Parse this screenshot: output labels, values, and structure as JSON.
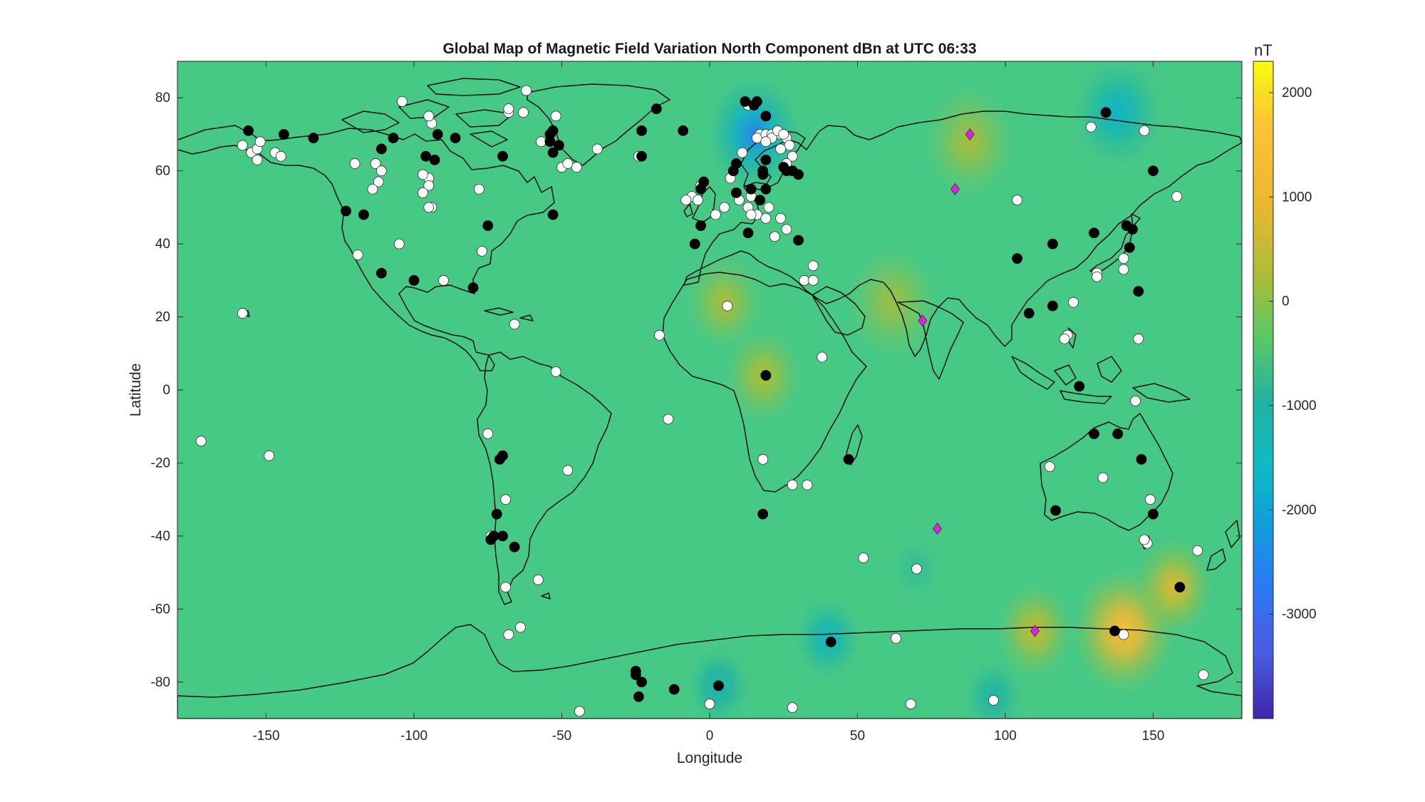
{
  "chart_data": {
    "type": "heatmap",
    "title": "Global Map of Magnetic Field Variation North Component dBn at UTC 06:33",
    "xlabel": "Longitude",
    "ylabel": "Latitude",
    "xlim": [
      -180,
      180
    ],
    "ylim": [
      -90,
      90
    ],
    "xticks": [
      -150,
      -100,
      -50,
      0,
      50,
      100,
      150
    ],
    "yticks": [
      -80,
      -60,
      -40,
      -20,
      0,
      20,
      40,
      60,
      80
    ],
    "colorbar": {
      "unit": "nT",
      "range": [
        -4000,
        2300
      ],
      "ticks": [
        2000,
        1000,
        0,
        -1000,
        -2000,
        -3000
      ],
      "colormap": "parula",
      "background_value": -150
    },
    "field_anomalies": [
      {
        "lon": 15,
        "lat": 70,
        "value": -2600,
        "radius": 8
      },
      {
        "lon": 138,
        "lat": 76,
        "value": -1700,
        "radius": 8
      },
      {
        "lon": 140,
        "lat": -66,
        "value": 1500,
        "radius": 8
      },
      {
        "lon": 157,
        "lat": -54,
        "value": 800,
        "radius": 6
      },
      {
        "lon": 110,
        "lat": -66,
        "value": 450,
        "radius": 6
      },
      {
        "lon": 40,
        "lat": -68,
        "value": -1600,
        "radius": 6
      },
      {
        "lon": 3,
        "lat": -81,
        "value": -1300,
        "radius": 6
      },
      {
        "lon": 96,
        "lat": -84,
        "value": -1100,
        "radius": 6
      },
      {
        "lon": 70,
        "lat": -49,
        "value": -700,
        "radius": 6
      },
      {
        "lon": 5,
        "lat": 24,
        "value": 250,
        "radius": 6
      },
      {
        "lon": 18,
        "lat": 4,
        "value": 280,
        "radius": 6
      },
      {
        "lon": 88,
        "lat": 68,
        "value": 220,
        "radius": 7
      },
      {
        "lon": 62,
        "lat": 24,
        "value": 150,
        "radius": 7
      }
    ],
    "colors": {
      "white_station": "#ffffff",
      "black_station": "#000000",
      "diamond": "#e020e0"
    },
    "stations_white": [
      [
        -158,
        67
      ],
      [
        -155,
        65
      ],
      [
        -153,
        66
      ],
      [
        -152,
        68
      ],
      [
        -147,
        65
      ],
      [
        -145,
        64
      ],
      [
        -153,
        63
      ],
      [
        -120,
        62
      ],
      [
        -113,
        62
      ],
      [
        -111,
        60
      ],
      [
        -112,
        57
      ],
      [
        -114,
        55
      ],
      [
        -95,
        58
      ],
      [
        -95,
        56
      ],
      [
        -97,
        54
      ],
      [
        -94,
        50
      ],
      [
        -95,
        50
      ],
      [
        -97,
        59
      ],
      [
        -94,
        73
      ],
      [
        -68,
        76
      ],
      [
        -62,
        82
      ],
      [
        -52,
        75
      ],
      [
        -68,
        77
      ],
      [
        -63,
        76
      ],
      [
        -57,
        68
      ],
      [
        -45,
        61
      ],
      [
        -50,
        61
      ],
      [
        -48,
        62
      ],
      [
        -38,
        66
      ],
      [
        -24,
        64
      ],
      [
        -78,
        55
      ],
      [
        -119,
        37
      ],
      [
        -105,
        40
      ],
      [
        -90,
        30
      ],
      [
        -77,
        38
      ],
      [
        -66,
        18
      ],
      [
        -158,
        21
      ],
      [
        -52,
        5
      ],
      [
        -75,
        -12
      ],
      [
        -149,
        -18
      ],
      [
        -172,
        -14
      ],
      [
        -48,
        -22
      ],
      [
        -14,
        -8
      ],
      [
        -69,
        -30
      ],
      [
        -58,
        -52
      ],
      [
        -69,
        -54
      ],
      [
        -64,
        -65
      ],
      [
        -68,
        -67
      ],
      [
        -44,
        -88
      ],
      [
        -104,
        79
      ],
      [
        -95,
        75
      ],
      [
        13,
        78
      ],
      [
        7,
        58
      ],
      [
        2,
        48
      ],
      [
        5,
        50
      ],
      [
        -6,
        53
      ],
      [
        -8,
        52
      ],
      [
        -3,
        56
      ],
      [
        -4,
        52
      ],
      [
        10,
        52
      ],
      [
        13,
        50
      ],
      [
        14,
        53
      ],
      [
        20,
        50
      ],
      [
        24,
        47
      ],
      [
        16,
        48
      ],
      [
        14,
        48
      ],
      [
        19,
        47
      ],
      [
        22,
        42
      ],
      [
        26,
        44
      ],
      [
        17,
        70
      ],
      [
        16,
        69
      ],
      [
        19,
        70
      ],
      [
        21,
        70
      ],
      [
        24,
        70
      ],
      [
        26,
        69
      ],
      [
        27,
        67
      ],
      [
        28,
        64
      ],
      [
        21,
        69
      ],
      [
        19,
        68
      ],
      [
        23,
        71
      ],
      [
        25,
        70
      ],
      [
        24,
        66
      ],
      [
        26,
        62
      ],
      [
        11,
        65
      ],
      [
        -17,
        15
      ],
      [
        6,
        23
      ],
      [
        32,
        30
      ],
      [
        35,
        30
      ],
      [
        35,
        34
      ],
      [
        38,
        9
      ],
      [
        18,
        -19
      ],
      [
        28,
        -26
      ],
      [
        33,
        -26
      ],
      [
        140,
        -67
      ],
      [
        52,
        -46
      ],
      [
        70,
        -49
      ],
      [
        63,
        -68
      ],
      [
        0,
        -86
      ],
      [
        28,
        -87
      ],
      [
        68,
        -86
      ],
      [
        96,
        -85
      ],
      [
        104,
        52
      ],
      [
        129,
        72
      ],
      [
        147,
        71
      ],
      [
        158,
        53
      ],
      [
        140,
        36
      ],
      [
        140,
        33
      ],
      [
        131,
        32
      ],
      [
        131,
        31
      ],
      [
        123,
        24
      ],
      [
        121,
        15
      ],
      [
        120,
        14
      ],
      [
        145,
        14
      ],
      [
        144,
        -3
      ],
      [
        115,
        -21
      ],
      [
        133,
        -24
      ],
      [
        149,
        -30
      ],
      [
        148,
        -42
      ],
      [
        147,
        -41
      ],
      [
        165,
        -44
      ],
      [
        167,
        -78
      ],
      [
        -74,
        -40
      ]
    ],
    "stations_black": [
      [
        -156,
        71
      ],
      [
        -144,
        70
      ],
      [
        -134,
        69
      ],
      [
        -111,
        66
      ],
      [
        -107,
        69
      ],
      [
        -96,
        64
      ],
      [
        -93,
        63
      ],
      [
        -92,
        70
      ],
      [
        -86,
        69
      ],
      [
        -70,
        64
      ],
      [
        -53,
        71
      ],
      [
        -54,
        70
      ],
      [
        -54,
        68
      ],
      [
        -51,
        67
      ],
      [
        -53,
        65
      ],
      [
        -23,
        71
      ],
      [
        -18,
        77
      ],
      [
        -53,
        48
      ],
      [
        -80,
        28
      ],
      [
        -75,
        45
      ],
      [
        -123,
        49
      ],
      [
        -117,
        48
      ],
      [
        -111,
        32
      ],
      [
        -100,
        30
      ],
      [
        -70,
        -18
      ],
      [
        -71,
        -19
      ],
      [
        -72,
        -34
      ],
      [
        -73,
        -40
      ],
      [
        -74,
        -41
      ],
      [
        -70,
        -40
      ],
      [
        -66,
        -43
      ],
      [
        -25,
        -77
      ],
      [
        -25,
        -78
      ],
      [
        -23,
        -80
      ],
      [
        -24,
        -84
      ],
      [
        -12,
        -82
      ],
      [
        3,
        -81
      ],
      [
        41,
        -69
      ],
      [
        -5,
        40
      ],
      [
        -3,
        45
      ],
      [
        -3,
        55
      ],
      [
        -2,
        57
      ],
      [
        12,
        79
      ],
      [
        16,
        79
      ],
      [
        15,
        78
      ],
      [
        19,
        75
      ],
      [
        9,
        62
      ],
      [
        14,
        55
      ],
      [
        17,
        52
      ],
      [
        9,
        54
      ],
      [
        8,
        60
      ],
      [
        18,
        60
      ],
      [
        18,
        59
      ],
      [
        19,
        63
      ],
      [
        25,
        61
      ],
      [
        19,
        55
      ],
      [
        26,
        60
      ],
      [
        28,
        60
      ],
      [
        30,
        59
      ],
      [
        13,
        43
      ],
      [
        30,
        41
      ],
      [
        -23,
        64
      ],
      [
        -9,
        71
      ],
      [
        19,
        4
      ],
      [
        47,
        -19
      ],
      [
        18,
        -34
      ],
      [
        104,
        36
      ],
      [
        108,
        21
      ],
      [
        116,
        40
      ],
      [
        130,
        43
      ],
      [
        141,
        45
      ],
      [
        143,
        44
      ],
      [
        142,
        39
      ],
      [
        137,
        -66
      ],
      [
        145,
        27
      ],
      [
        116,
        23
      ],
      [
        125,
        1
      ],
      [
        130,
        -12
      ],
      [
        138,
        -12
      ],
      [
        146,
        -19
      ],
      [
        150,
        -34
      ],
      [
        117,
        -33
      ],
      [
        159,
        -54
      ],
      [
        150,
        60
      ],
      [
        134,
        76
      ]
    ],
    "diamonds": [
      [
        88,
        70
      ],
      [
        83,
        55
      ],
      [
        72,
        19
      ],
      [
        77,
        -38
      ],
      [
        110,
        -66
      ]
    ]
  }
}
